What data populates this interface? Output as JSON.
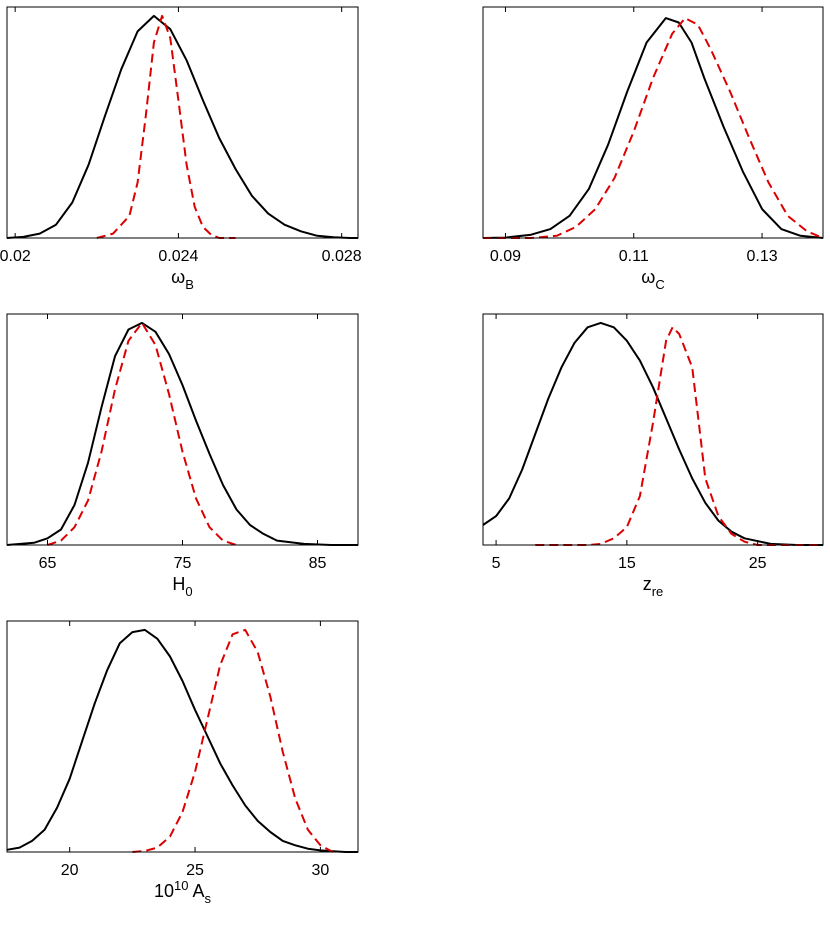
{
  "colors": {
    "black_series": "#000000",
    "red_series": "#dd0000",
    "frame": "#000000"
  },
  "chart_data": [
    {
      "type": "line",
      "xlabel": {
        "main": "ω",
        "sub": "B"
      },
      "xlim": [
        0.0198,
        0.0284
      ],
      "ylim": [
        0,
        1.04
      ],
      "xticks": [
        0.02,
        0.024,
        0.028
      ],
      "xtick_labels": [
        "0.02",
        "0.024",
        "0.028"
      ],
      "series": [
        {
          "color": "#000000",
          "dash": "solid",
          "x": [
            0.0198,
            0.0202,
            0.0206,
            0.021,
            0.0214,
            0.0218,
            0.0222,
            0.0226,
            0.023,
            0.0234,
            0.0238,
            0.0242,
            0.0246,
            0.025,
            0.0254,
            0.0258,
            0.0262,
            0.0266,
            0.027,
            0.0274,
            0.0278,
            0.0282,
            0.0284
          ],
          "y": [
            0,
            0.005,
            0.02,
            0.06,
            0.16,
            0.33,
            0.55,
            0.76,
            0.93,
            1.0,
            0.94,
            0.8,
            0.62,
            0.45,
            0.31,
            0.19,
            0.11,
            0.06,
            0.03,
            0.01,
            0.003,
            0.0,
            0.0
          ]
        },
        {
          "color": "#dd0000",
          "dash": "dashed",
          "x": [
            0.022,
            0.0224,
            0.0228,
            0.023,
            0.0232,
            0.0234,
            0.0236,
            0.0238,
            0.024,
            0.0242,
            0.0244,
            0.0246,
            0.0248,
            0.025,
            0.0254
          ],
          "y": [
            0,
            0.02,
            0.1,
            0.25,
            0.55,
            0.88,
            1.0,
            0.9,
            0.62,
            0.33,
            0.14,
            0.05,
            0.015,
            0.0,
            0.0
          ]
        }
      ]
    },
    {
      "type": "line",
      "xlabel": {
        "main": "ω",
        "sub": "C"
      },
      "xlim": [
        0.0865,
        0.1395
      ],
      "ylim": [
        0,
        1.04
      ],
      "xticks": [
        0.09,
        0.11,
        0.13
      ],
      "xtick_labels": [
        "0.09",
        "0.11",
        "0.13"
      ],
      "series": [
        {
          "color": "#000000",
          "dash": "solid",
          "x": [
            0.0865,
            0.09,
            0.094,
            0.097,
            0.1,
            0.103,
            0.106,
            0.109,
            0.112,
            0.115,
            0.117,
            0.119,
            0.121,
            0.124,
            0.127,
            0.13,
            0.133,
            0.136,
            0.1395
          ],
          "y": [
            0,
            0.002,
            0.015,
            0.04,
            0.1,
            0.22,
            0.42,
            0.66,
            0.88,
            0.99,
            0.97,
            0.88,
            0.72,
            0.5,
            0.3,
            0.13,
            0.04,
            0.01,
            0.0
          ]
        },
        {
          "color": "#dd0000",
          "dash": "dashed",
          "x": [
            0.0865,
            0.094,
            0.098,
            0.101,
            0.104,
            0.107,
            0.11,
            0.113,
            0.116,
            0.118,
            0.12,
            0.122,
            0.125,
            0.128,
            0.131,
            0.134,
            0.137,
            0.1395
          ],
          "y": [
            0,
            0.0,
            0.01,
            0.05,
            0.13,
            0.27,
            0.48,
            0.72,
            0.92,
            0.99,
            0.96,
            0.85,
            0.66,
            0.45,
            0.25,
            0.1,
            0.03,
            0.0
          ]
        }
      ]
    },
    {
      "type": "line",
      "xlabel": {
        "main": "H",
        "sub": "0"
      },
      "xlim": [
        62,
        88
      ],
      "ylim": [
        0,
        1.04
      ],
      "xticks": [
        65,
        75,
        85
      ],
      "xtick_labels": [
        "65",
        "75",
        "85"
      ],
      "series": [
        {
          "color": "#000000",
          "dash": "solid",
          "x": [
            62,
            64,
            65,
            66,
            67,
            68,
            69,
            70,
            71,
            72,
            73,
            74,
            75,
            76,
            77,
            78,
            79,
            80,
            81,
            82,
            84,
            86,
            88
          ],
          "y": [
            0,
            0.01,
            0.03,
            0.07,
            0.18,
            0.37,
            0.62,
            0.85,
            0.97,
            1.0,
            0.96,
            0.86,
            0.72,
            0.56,
            0.41,
            0.27,
            0.16,
            0.09,
            0.05,
            0.02,
            0.005,
            0.0,
            0.0
          ]
        },
        {
          "color": "#dd0000",
          "dash": "dashed",
          "x": [
            65,
            66,
            67,
            68,
            69,
            70,
            71,
            72,
            73,
            74,
            75,
            76,
            77,
            78,
            79
          ],
          "y": [
            0,
            0.02,
            0.08,
            0.2,
            0.42,
            0.7,
            0.92,
            1.0,
            0.9,
            0.68,
            0.42,
            0.21,
            0.08,
            0.02,
            0.0
          ]
        }
      ]
    },
    {
      "type": "line",
      "xlabel": {
        "main": "z",
        "sub": "re"
      },
      "xlim": [
        4,
        30
      ],
      "ylim": [
        0,
        1.04
      ],
      "xticks": [
        5,
        15,
        25
      ],
      "xtick_labels": [
        "5",
        "15",
        "25"
      ],
      "series": [
        {
          "color": "#000000",
          "dash": "solid",
          "x": [
            4,
            5,
            6,
            7,
            8,
            9,
            10,
            11,
            12,
            13,
            14,
            15,
            16,
            17,
            18,
            19,
            20,
            21,
            22,
            23,
            24,
            26,
            28,
            30
          ],
          "y": [
            0.09,
            0.13,
            0.21,
            0.34,
            0.5,
            0.66,
            0.8,
            0.91,
            0.98,
            1.0,
            0.98,
            0.92,
            0.83,
            0.71,
            0.57,
            0.43,
            0.3,
            0.19,
            0.11,
            0.06,
            0.03,
            0.005,
            0.0,
            0.0
          ]
        },
        {
          "color": "#dd0000",
          "dash": "dashed",
          "x": [
            8,
            10,
            12,
            13,
            14,
            15,
            16,
            17,
            18,
            18.5,
            19,
            20,
            20.5,
            21,
            22,
            23,
            24,
            25,
            27,
            30
          ],
          "y": [
            0,
            0,
            0,
            0.005,
            0.03,
            0.08,
            0.22,
            0.55,
            0.92,
            0.98,
            0.95,
            0.8,
            0.55,
            0.3,
            0.13,
            0.05,
            0.015,
            0.0,
            0.0,
            0.0
          ]
        }
      ]
    },
    {
      "type": "line",
      "xlabel": {
        "main": "10",
        "sup": "10",
        "mid": " A",
        "sub": "s"
      },
      "xlim": [
        17.5,
        31.5
      ],
      "ylim": [
        0,
        1.04
      ],
      "xticks": [
        20,
        25,
        30
      ],
      "xtick_labels": [
        "20",
        "25",
        "30"
      ],
      "series": [
        {
          "color": "#000000",
          "dash": "solid",
          "x": [
            17.5,
            18,
            18.5,
            19,
            19.5,
            20,
            20.5,
            21,
            21.5,
            22,
            22.5,
            23,
            23.5,
            24,
            24.5,
            25,
            25.5,
            26,
            26.5,
            27,
            27.5,
            28,
            28.5,
            29,
            29.5,
            30,
            30.5,
            31,
            31.5
          ],
          "y": [
            0.01,
            0.02,
            0.05,
            0.1,
            0.2,
            0.33,
            0.5,
            0.67,
            0.82,
            0.94,
            0.99,
            1.0,
            0.96,
            0.88,
            0.77,
            0.64,
            0.52,
            0.4,
            0.3,
            0.21,
            0.14,
            0.09,
            0.05,
            0.03,
            0.015,
            0.007,
            0.003,
            0.0,
            0.0
          ]
        },
        {
          "color": "#dd0000",
          "dash": "dashed",
          "x": [
            22.5,
            23,
            23.5,
            24,
            24.5,
            25,
            25.5,
            26,
            26.5,
            27,
            27.5,
            28,
            28.5,
            29,
            29.5,
            30,
            30.5
          ],
          "y": [
            0,
            0.005,
            0.02,
            0.07,
            0.18,
            0.36,
            0.6,
            0.84,
            0.98,
            1.0,
            0.9,
            0.7,
            0.45,
            0.24,
            0.1,
            0.03,
            0.0
          ]
        }
      ]
    }
  ]
}
